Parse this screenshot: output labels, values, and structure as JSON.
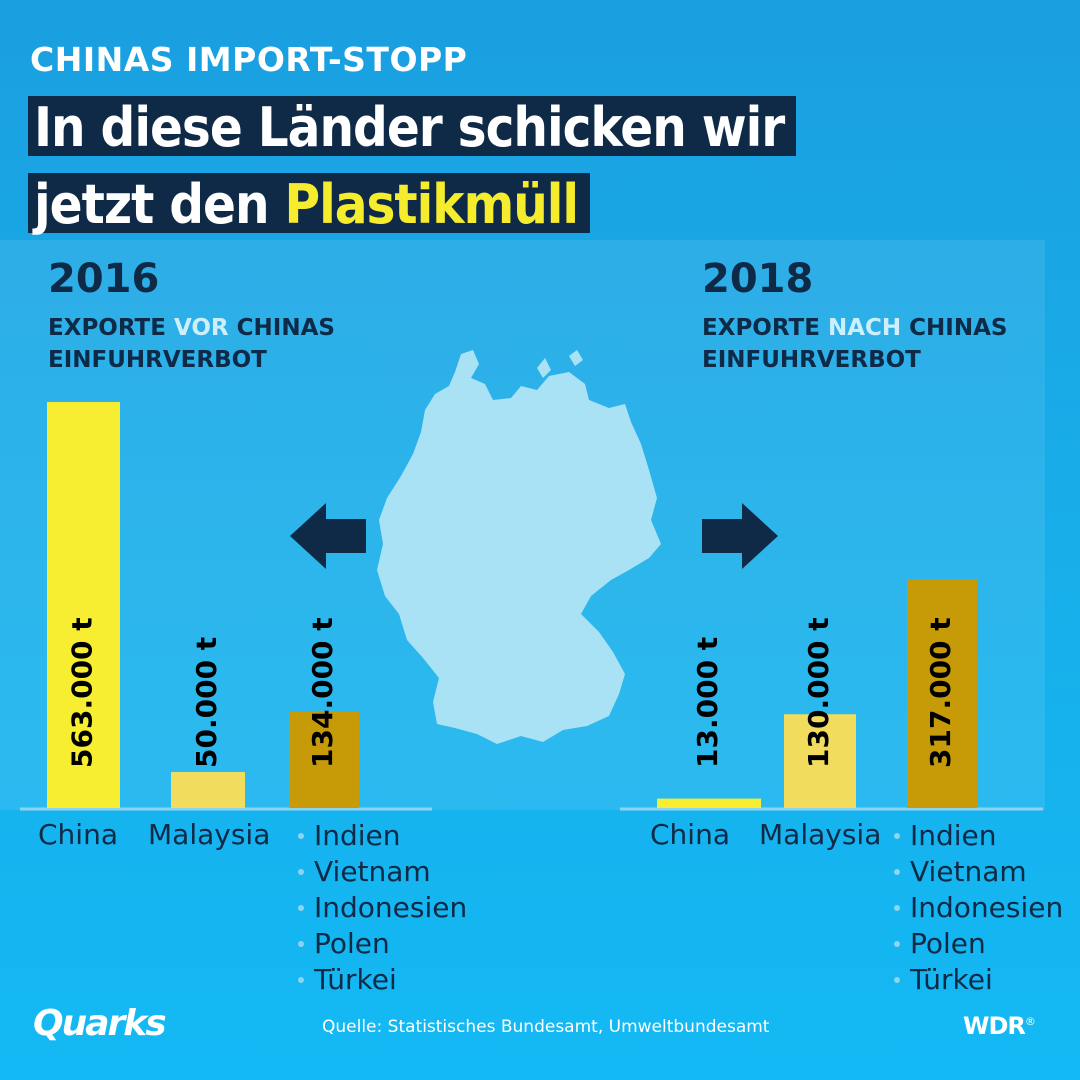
{
  "kicker": "CHINAS IMPORT-STOPP",
  "title": {
    "line1": "In diese Länder schicken wir",
    "line2_plain": "jetzt den",
    "line2_highlight": "Plastikmüll"
  },
  "left_panel": {
    "year": "2016",
    "sub_pre": "EXPORTE ",
    "sub_accent": "VOR",
    "sub_post": " CHINAS",
    "sub_line2": "EINFUHRVERBOT"
  },
  "right_panel": {
    "year": "2018",
    "sub_pre": "EXPORTE ",
    "sub_accent": "NACH",
    "sub_post": " CHINAS",
    "sub_line2": "EINFUHRVERBOT"
  },
  "icons": {
    "left_arrow": "arrow-left-icon",
    "right_arrow": "arrow-right-icon",
    "map": "germany-map-icon"
  },
  "colors": {
    "china": "#f7ee32",
    "malaysia": "#f1dc5e",
    "others": "#c79b07",
    "text_dark": "#0e2a47",
    "highlight": "#f5ec2e",
    "map": "#a9e2f5"
  },
  "chart_data": [
    {
      "type": "bar",
      "title": "2016",
      "categories": [
        "China",
        "Malaysia",
        "Indien, Vietnam, Indonesien, Polen, Türkei"
      ],
      "values": [
        563000,
        50000,
        134000
      ],
      "unit": "t",
      "labels": [
        "563.000 t",
        "50.000 t",
        "134.000 t"
      ]
    },
    {
      "type": "bar",
      "title": "2018",
      "categories": [
        "China",
        "Malaysia",
        "Indien, Vietnam, Indonesien, Polen, Türkei"
      ],
      "values": [
        13000,
        130000,
        317000
      ],
      "unit": "t",
      "labels": [
        "13.000 t",
        "130.000 t",
        "317.000 t"
      ]
    }
  ],
  "category_labels": {
    "china": "China",
    "malaysia": "Malaysia",
    "others": [
      "Indien",
      "Vietnam",
      "Indonesien",
      "Polen",
      "Türkei"
    ]
  },
  "footer": {
    "logo_left": "Quarks",
    "source": "Quelle: Statistisches Bundesamt, Umweltbundesamt",
    "logo_right": "WDR",
    "logo_right_mark": "®"
  }
}
